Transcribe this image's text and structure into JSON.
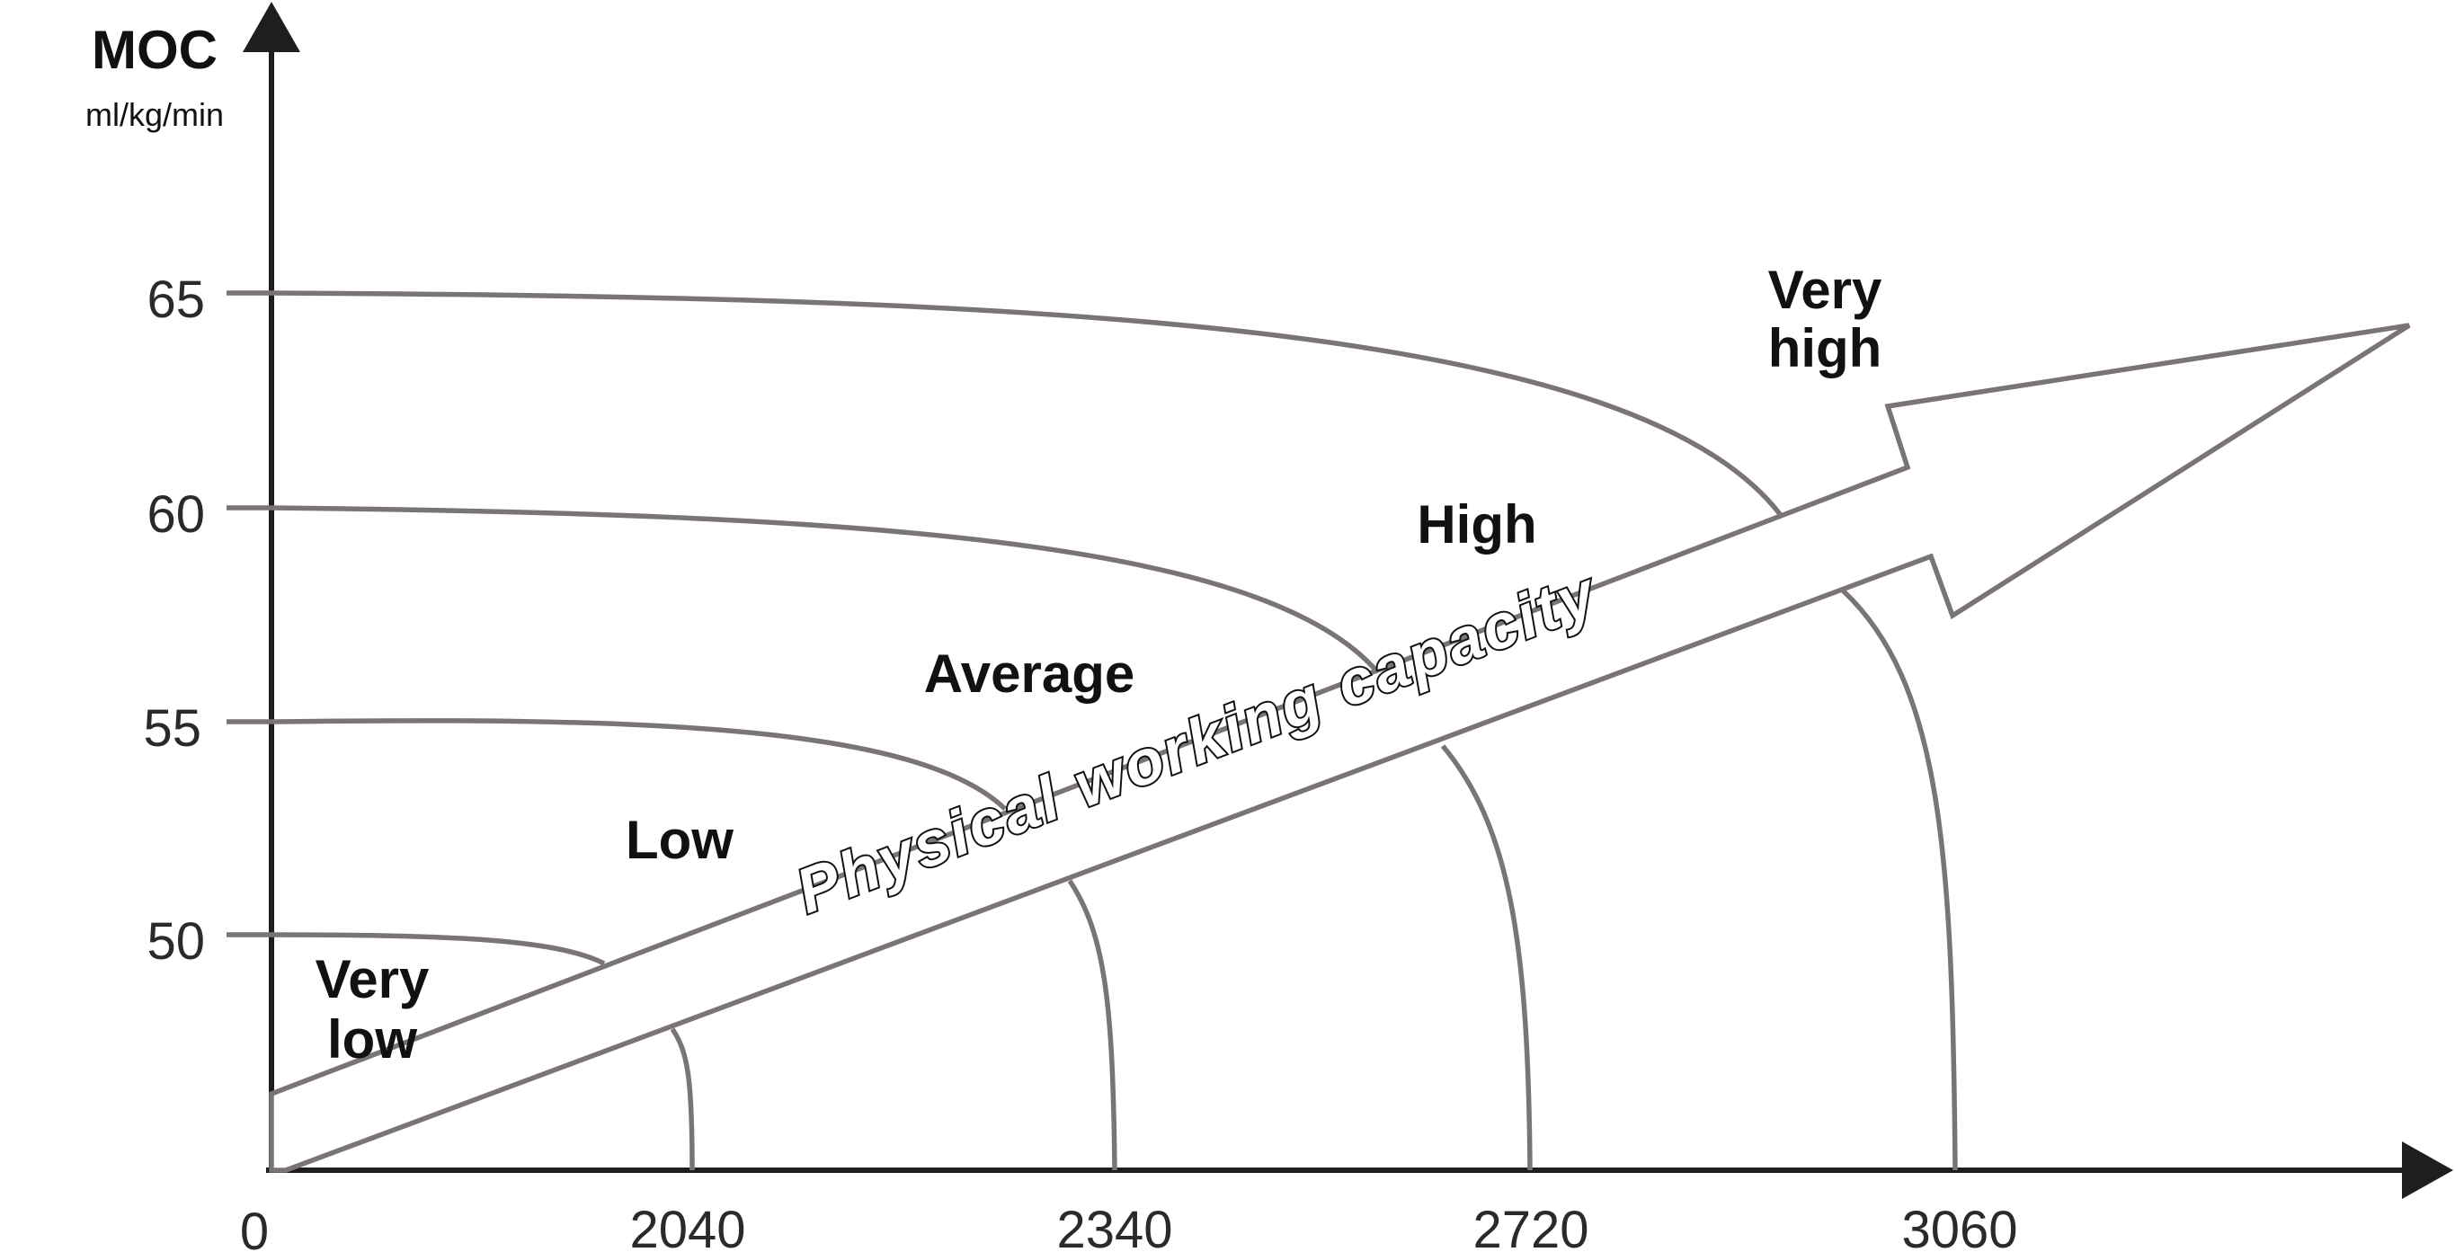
{
  "y_axis": {
    "title": "MOC",
    "unit": "ml/kg/min",
    "ticks": [
      "65",
      "60",
      "55",
      "50"
    ]
  },
  "x_axis": {
    "origin": "0",
    "ticks": [
      "2040",
      "2340",
      "2720",
      "3060"
    ]
  },
  "zones": {
    "very_low": [
      "Very",
      "low"
    ],
    "low": "Low",
    "average": "Average",
    "high": "High",
    "very_high": [
      "Very",
      "high"
    ]
  },
  "arrow_label": "Physical working capacity",
  "colors": {
    "axis": "#1e1e1e",
    "curve": "#7a7474",
    "background": "#ffffff"
  }
}
